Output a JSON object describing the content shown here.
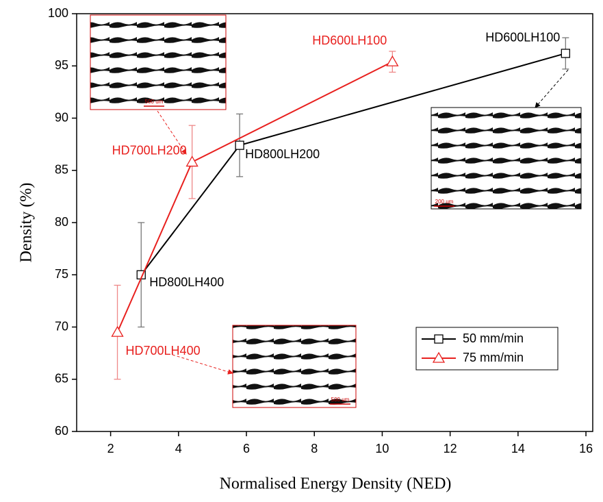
{
  "chart_data": {
    "type": "line",
    "x_label": "Normalised Energy Density (NED)",
    "y_label": "Density (%)",
    "xlim": [
      1,
      16.2
    ],
    "xticks": [
      2,
      4,
      6,
      8,
      10,
      12,
      14,
      16
    ],
    "ylim": [
      60,
      100
    ],
    "yticks": [
      60,
      65,
      70,
      75,
      80,
      85,
      90,
      95,
      100
    ],
    "legend": "lower right",
    "series": [
      {
        "name": "50 mm/min",
        "color": "#000000",
        "marker": "square",
        "x": [
          2.9,
          5.8,
          15.4
        ],
        "values": [
          75,
          87.4,
          96.2
        ],
        "errors": [
          5,
          3,
          1.5
        ],
        "point_labels": [
          "HD800LH400",
          "HD800LH200",
          "HD600LH100"
        ]
      },
      {
        "name": "75 mm/min",
        "color": "#e8201e",
        "marker": "triangle",
        "x": [
          2.2,
          4.4,
          10.3
        ],
        "values": [
          69.5,
          85.8,
          95.4
        ],
        "errors": [
          4.5,
          3.5,
          1
        ],
        "point_labels": [
          "HD700LH400",
          "HD700LH200",
          "HD600LH100"
        ]
      }
    ],
    "insets": [
      {
        "scale_label": "500 um"
      },
      {
        "scale_label": "200 um"
      },
      {
        "scale_label": "500 um"
      }
    ]
  }
}
